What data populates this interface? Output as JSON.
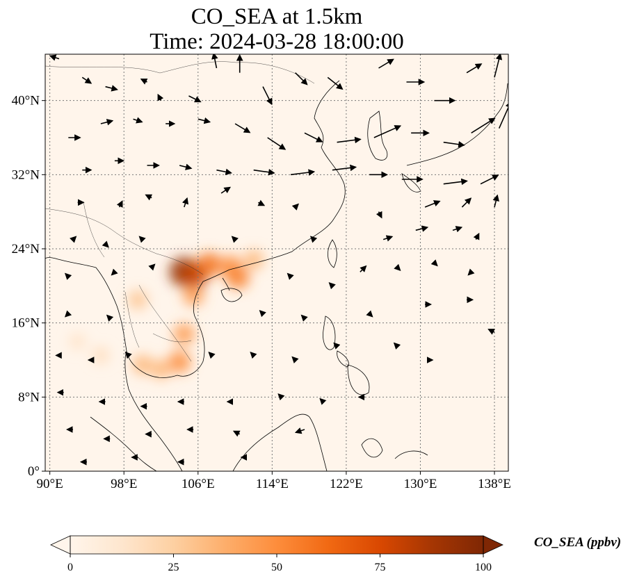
{
  "title": {
    "line1": "CO_SEA at 1.5km",
    "line2": "Time: 2024-03-28 18:00:00"
  },
  "map": {
    "extent": {
      "lon_min": 89.5,
      "lon_max": 139.5,
      "lat_min": 0,
      "lat_max": 45
    },
    "xticks": [
      {
        "lon": 90,
        "label": "90°E"
      },
      {
        "lon": 98,
        "label": "98°E"
      },
      {
        "lon": 106,
        "label": "106°E"
      },
      {
        "lon": 114,
        "label": "114°E"
      },
      {
        "lon": 122,
        "label": "122°E"
      },
      {
        "lon": 130,
        "label": "130°E"
      },
      {
        "lon": 138,
        "label": "138°E"
      }
    ],
    "yticks": [
      {
        "lat": 0,
        "label": "0°"
      },
      {
        "lat": 8,
        "label": "8°N"
      },
      {
        "lat": 16,
        "label": "16°N"
      },
      {
        "lat": 24,
        "label": "24°N"
      },
      {
        "lat": 32,
        "label": "32°N"
      },
      {
        "lat": 40,
        "label": "40°N"
      }
    ],
    "background_color": "#fff5eb",
    "hotspots": [
      {
        "lon": 104.5,
        "lat": 21.5,
        "value": 95
      },
      {
        "lon": 105.6,
        "lat": 21.1,
        "value": 80
      },
      {
        "lon": 107.2,
        "lat": 22.3,
        "value": 60
      },
      {
        "lon": 109.5,
        "lat": 22.1,
        "value": 50
      },
      {
        "lon": 112.0,
        "lat": 22.8,
        "value": 35
      },
      {
        "lon": 110.3,
        "lat": 20.9,
        "value": 55
      },
      {
        "lon": 105.5,
        "lat": 19.0,
        "value": 45
      },
      {
        "lon": 104.5,
        "lat": 14.8,
        "value": 45
      },
      {
        "lon": 104.0,
        "lat": 11.8,
        "value": 50
      },
      {
        "lon": 102.0,
        "lat": 11.0,
        "value": 35
      },
      {
        "lon": 100.0,
        "lat": 11.5,
        "value": 35
      },
      {
        "lon": 99.5,
        "lat": 18.5,
        "value": 30
      },
      {
        "lon": 95.5,
        "lat": 12.5,
        "value": 18
      },
      {
        "lon": 93.0,
        "lat": 14.0,
        "value": 15
      }
    ],
    "wind_vectors": [
      {
        "lon": 91.0,
        "lat": 44.5,
        "u": -3,
        "v": 1
      },
      {
        "lon": 93.5,
        "lat": 42.5,
        "u": 3,
        "v": -2
      },
      {
        "lon": 96.0,
        "lat": 41.5,
        "u": 4,
        "v": -1
      },
      {
        "lon": 100.5,
        "lat": 42.0,
        "u": -2,
        "v": 1
      },
      {
        "lon": 102.0,
        "lat": 40.0,
        "u": -1,
        "v": 2
      },
      {
        "lon": 105.0,
        "lat": 40.5,
        "u": 4,
        "v": -2
      },
      {
        "lon": 108.0,
        "lat": 43.5,
        "u": -1,
        "v": 5
      },
      {
        "lon": 110.5,
        "lat": 43.0,
        "u": 0,
        "v": 6
      },
      {
        "lon": 113.0,
        "lat": 41.5,
        "u": 3,
        "v": -6
      },
      {
        "lon": 116.5,
        "lat": 43.0,
        "u": 4,
        "v": -4
      },
      {
        "lon": 120.0,
        "lat": 42.5,
        "u": 5,
        "v": -4
      },
      {
        "lon": 125.5,
        "lat": 43.5,
        "u": 5,
        "v": 3
      },
      {
        "lon": 128.5,
        "lat": 42.0,
        "u": 6,
        "v": 0
      },
      {
        "lon": 131.5,
        "lat": 40.0,
        "u": 7,
        "v": 0
      },
      {
        "lon": 135.0,
        "lat": 43.0,
        "u": 5,
        "v": 3
      },
      {
        "lon": 138.0,
        "lat": 42.5,
        "u": 2,
        "v": 8
      },
      {
        "lon": 92.0,
        "lat": 36.0,
        "u": 4,
        "v": 0
      },
      {
        "lon": 95.5,
        "lat": 37.5,
        "u": 4,
        "v": 1
      },
      {
        "lon": 99.0,
        "lat": 38.0,
        "u": 3,
        "v": -1
      },
      {
        "lon": 102.5,
        "lat": 37.5,
        "u": 3,
        "v": 0
      },
      {
        "lon": 106.0,
        "lat": 38.0,
        "u": 4,
        "v": -1
      },
      {
        "lon": 110.0,
        "lat": 37.5,
        "u": 5,
        "v": -3
      },
      {
        "lon": 113.5,
        "lat": 36.0,
        "u": 6,
        "v": -4
      },
      {
        "lon": 117.5,
        "lat": 36.5,
        "u": 6,
        "v": -3
      },
      {
        "lon": 121.0,
        "lat": 35.5,
        "u": 8,
        "v": 1
      },
      {
        "lon": 125.0,
        "lat": 36.0,
        "u": 9,
        "v": 4
      },
      {
        "lon": 129.0,
        "lat": 36.5,
        "u": 6,
        "v": 0
      },
      {
        "lon": 132.5,
        "lat": 35.5,
        "u": 7,
        "v": -1
      },
      {
        "lon": 135.5,
        "lat": 36.5,
        "u": 8,
        "v": 5
      },
      {
        "lon": 138.5,
        "lat": 37.0,
        "u": 4,
        "v": 9
      },
      {
        "lon": 93.5,
        "lat": 32.5,
        "u": 3,
        "v": 0
      },
      {
        "lon": 97.0,
        "lat": 33.5,
        "u": 3,
        "v": 0
      },
      {
        "lon": 100.5,
        "lat": 33.0,
        "u": 4,
        "v": 0
      },
      {
        "lon": 104.0,
        "lat": 33.0,
        "u": 4,
        "v": -1
      },
      {
        "lon": 108.0,
        "lat": 32.5,
        "u": 5,
        "v": -1
      },
      {
        "lon": 112.0,
        "lat": 32.5,
        "u": 7,
        "v": -1
      },
      {
        "lon": 116.0,
        "lat": 32.0,
        "u": 8,
        "v": 1
      },
      {
        "lon": 120.5,
        "lat": 32.5,
        "u": 8,
        "v": 1
      },
      {
        "lon": 124.5,
        "lat": 32.0,
        "u": 6,
        "v": 0
      },
      {
        "lon": 128.0,
        "lat": 31.5,
        "u": 7,
        "v": 0
      },
      {
        "lon": 132.5,
        "lat": 31.0,
        "u": 8,
        "v": 1
      },
      {
        "lon": 136.5,
        "lat": 31.0,
        "u": 6,
        "v": 3
      },
      {
        "lon": 93.0,
        "lat": 29.0,
        "u": 2,
        "v": 0
      },
      {
        "lon": 97.5,
        "lat": 28.5,
        "u": 1,
        "v": 2
      },
      {
        "lon": 101.0,
        "lat": 29.5,
        "u": -2,
        "v": 1
      },
      {
        "lon": 104.5,
        "lat": 28.5,
        "u": 1,
        "v": 3
      },
      {
        "lon": 108.5,
        "lat": 30.0,
        "u": 3,
        "v": 2
      },
      {
        "lon": 112.5,
        "lat": 29.0,
        "u": 2,
        "v": -1
      },
      {
        "lon": 116.5,
        "lat": 28.5,
        "u": 1,
        "v": 1
      },
      {
        "lon": 125.5,
        "lat": 28.0,
        "u": 1,
        "v": -2
      },
      {
        "lon": 130.5,
        "lat": 28.5,
        "u": 5,
        "v": 2
      },
      {
        "lon": 134.5,
        "lat": 28.5,
        "u": 3,
        "v": 3
      },
      {
        "lon": 138.0,
        "lat": 28.5,
        "u": 1,
        "v": 4
      },
      {
        "lon": 92.5,
        "lat": 25.0,
        "u": 1,
        "v": 1
      },
      {
        "lon": 96.0,
        "lat": 24.5,
        "u": 1,
        "v": -1
      },
      {
        "lon": 100.0,
        "lat": 25.0,
        "u": -1,
        "v": 1
      },
      {
        "lon": 110.0,
        "lat": 25.0,
        "u": -1,
        "v": 1
      },
      {
        "lon": 118.5,
        "lat": 25.0,
        "u": -1,
        "v": 1
      },
      {
        "lon": 126.0,
        "lat": 25.0,
        "u": 3,
        "v": 1
      },
      {
        "lon": 129.5,
        "lat": 26.0,
        "u": 4,
        "v": 1
      },
      {
        "lon": 133.5,
        "lat": 26.0,
        "u": 3,
        "v": 1
      },
      {
        "lon": 136.0,
        "lat": 25.0,
        "u": 1,
        "v": 2
      },
      {
        "lon": 92.0,
        "lat": 21.0,
        "u": -1,
        "v": 1
      },
      {
        "lon": 97.0,
        "lat": 21.5,
        "u": -1,
        "v": -1
      },
      {
        "lon": 101.0,
        "lat": 22.0,
        "u": 1,
        "v": 1
      },
      {
        "lon": 116.0,
        "lat": 21.0,
        "u": -1,
        "v": 1
      },
      {
        "lon": 120.5,
        "lat": 20.0,
        "u": -1,
        "v": 1
      },
      {
        "lon": 123.5,
        "lat": 21.5,
        "u": 2,
        "v": 2
      },
      {
        "lon": 127.5,
        "lat": 22.0,
        "u": 1,
        "v": -1
      },
      {
        "lon": 131.5,
        "lat": 22.5,
        "u": 1,
        "v": -1
      },
      {
        "lon": 135.5,
        "lat": 21.5,
        "u": -1,
        "v": -1
      },
      {
        "lon": 92.0,
        "lat": 17.0,
        "u": -1,
        "v": -1
      },
      {
        "lon": 96.5,
        "lat": 16.5,
        "u": -1,
        "v": 1
      },
      {
        "lon": 113.0,
        "lat": 17.0,
        "u": -1,
        "v": 1
      },
      {
        "lon": 117.5,
        "lat": 16.5,
        "u": -1,
        "v": 1
      },
      {
        "lon": 124.5,
        "lat": 17.0,
        "u": 1,
        "v": -1
      },
      {
        "lon": 130.5,
        "lat": 18.0,
        "u": 2,
        "v": 0
      },
      {
        "lon": 135.0,
        "lat": 18.5,
        "u": 2,
        "v": 0
      },
      {
        "lon": 138.0,
        "lat": 15.0,
        "u": -2,
        "v": 1
      },
      {
        "lon": 91.0,
        "lat": 12.5,
        "u": -1,
        "v": 0
      },
      {
        "lon": 94.5,
        "lat": 12.0,
        "u": -1,
        "v": 0
      },
      {
        "lon": 98.5,
        "lat": 12.5,
        "u": -1,
        "v": 1
      },
      {
        "lon": 107.5,
        "lat": 12.5,
        "u": -1,
        "v": 1
      },
      {
        "lon": 112.0,
        "lat": 12.5,
        "u": -1,
        "v": 1
      },
      {
        "lon": 116.5,
        "lat": 12.0,
        "u": -1,
        "v": 1
      },
      {
        "lon": 121.0,
        "lat": 13.5,
        "u": -1,
        "v": 1
      },
      {
        "lon": 127.5,
        "lat": 13.5,
        "u": -1,
        "v": 1
      },
      {
        "lon": 131.0,
        "lat": 12.0,
        "u": 1,
        "v": 0
      },
      {
        "lon": 91.5,
        "lat": 8.5,
        "u": -2,
        "v": 0
      },
      {
        "lon": 96.0,
        "lat": 7.5,
        "u": -2,
        "v": 0
      },
      {
        "lon": 100.5,
        "lat": 7.0,
        "u": -2,
        "v": 0
      },
      {
        "lon": 104.5,
        "lat": 7.5,
        "u": -2,
        "v": 0
      },
      {
        "lon": 109.5,
        "lat": 7.5,
        "u": -1,
        "v": 0
      },
      {
        "lon": 115.0,
        "lat": 8.0,
        "u": -1,
        "v": 1
      },
      {
        "lon": 119.5,
        "lat": 7.5,
        "u": -1,
        "v": 1
      },
      {
        "lon": 124.0,
        "lat": 8.0,
        "u": -2,
        "v": 0
      },
      {
        "lon": 92.5,
        "lat": 4.5,
        "u": -2,
        "v": 0
      },
      {
        "lon": 96.5,
        "lat": 3.5,
        "u": -2,
        "v": 0
      },
      {
        "lon": 101.0,
        "lat": 4.0,
        "u": -2,
        "v": 0
      },
      {
        "lon": 105.5,
        "lat": 4.5,
        "u": -2,
        "v": 0
      },
      {
        "lon": 110.5,
        "lat": 4.0,
        "u": -2,
        "v": 1
      },
      {
        "lon": 117.5,
        "lat": 4.5,
        "u": -3,
        "v": -1
      },
      {
        "lon": 94.0,
        "lat": 1.0,
        "u": -2,
        "v": 0
      },
      {
        "lon": 99.5,
        "lat": 1.5,
        "u": -2,
        "v": 0
      },
      {
        "lon": 104.5,
        "lat": 1.0,
        "u": -2,
        "v": 0
      },
      {
        "lon": 111.0,
        "lat": 1.5,
        "u": -1,
        "v": 0
      }
    ]
  },
  "colorbar": {
    "label": "CO_SEA (ppbv)",
    "vmin": 0,
    "vmax": 100,
    "ticks": [
      {
        "value": 0,
        "label": "0"
      },
      {
        "value": 25,
        "label": "25"
      },
      {
        "value": 50,
        "label": "50"
      },
      {
        "value": 75,
        "label": "75"
      },
      {
        "value": 100,
        "label": "100"
      }
    ],
    "colors": [
      "#fff5eb",
      "#fee6ce",
      "#fdd0a2",
      "#fdae6b",
      "#fd8d3c",
      "#f16913",
      "#d94801",
      "#a63603",
      "#7f2704"
    ]
  }
}
